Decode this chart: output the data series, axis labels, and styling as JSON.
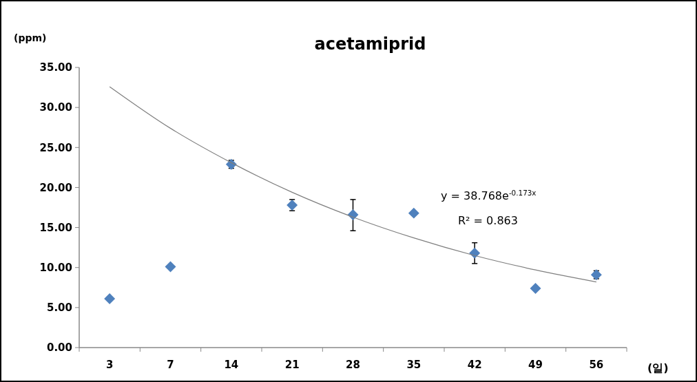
{
  "chart_data": {
    "type": "scatter",
    "title": "acetamiprid",
    "xlabel": "(일)",
    "ylabel": "(ppm)",
    "categories": [
      "3",
      "7",
      "14",
      "21",
      "28",
      "35",
      "42",
      "49",
      "56"
    ],
    "series": [
      {
        "color": "#4f81bd",
        "marker": "diamond",
        "values": [
          6.1,
          10.1,
          22.9,
          17.8,
          16.6,
          16.8,
          11.8,
          7.4,
          9.1
        ],
        "errors": [
          null,
          null,
          0.5,
          0.7,
          [
            14.6,
            18.5
          ],
          null,
          [
            10.5,
            13.1
          ],
          null,
          0.5
        ]
      },
      {
        "type": "line",
        "color": "#7f7f7f",
        "values": [
          32.6,
          27.4,
          23.1,
          19.4,
          16.3,
          13.7,
          11.5,
          9.7,
          8.2
        ]
      }
    ],
    "ylim": [
      0,
      35
    ],
    "yticks": [
      {
        "value": 0,
        "label": "0.00"
      },
      {
        "value": 5,
        "label": "5.00"
      },
      {
        "value": 10,
        "label": "10.00"
      },
      {
        "value": 15,
        "label": "15.00"
      },
      {
        "value": 20,
        "label": "20.00"
      },
      {
        "value": 25,
        "label": "25.00"
      },
      {
        "value": 30,
        "label": "30.00"
      },
      {
        "value": 35,
        "label": "35.00"
      }
    ],
    "line_style": "solid",
    "grid": false,
    "annotations": [
      "y = 38.768e$^{-0.173x}$",
      "R² = 0.863"
    ]
  }
}
